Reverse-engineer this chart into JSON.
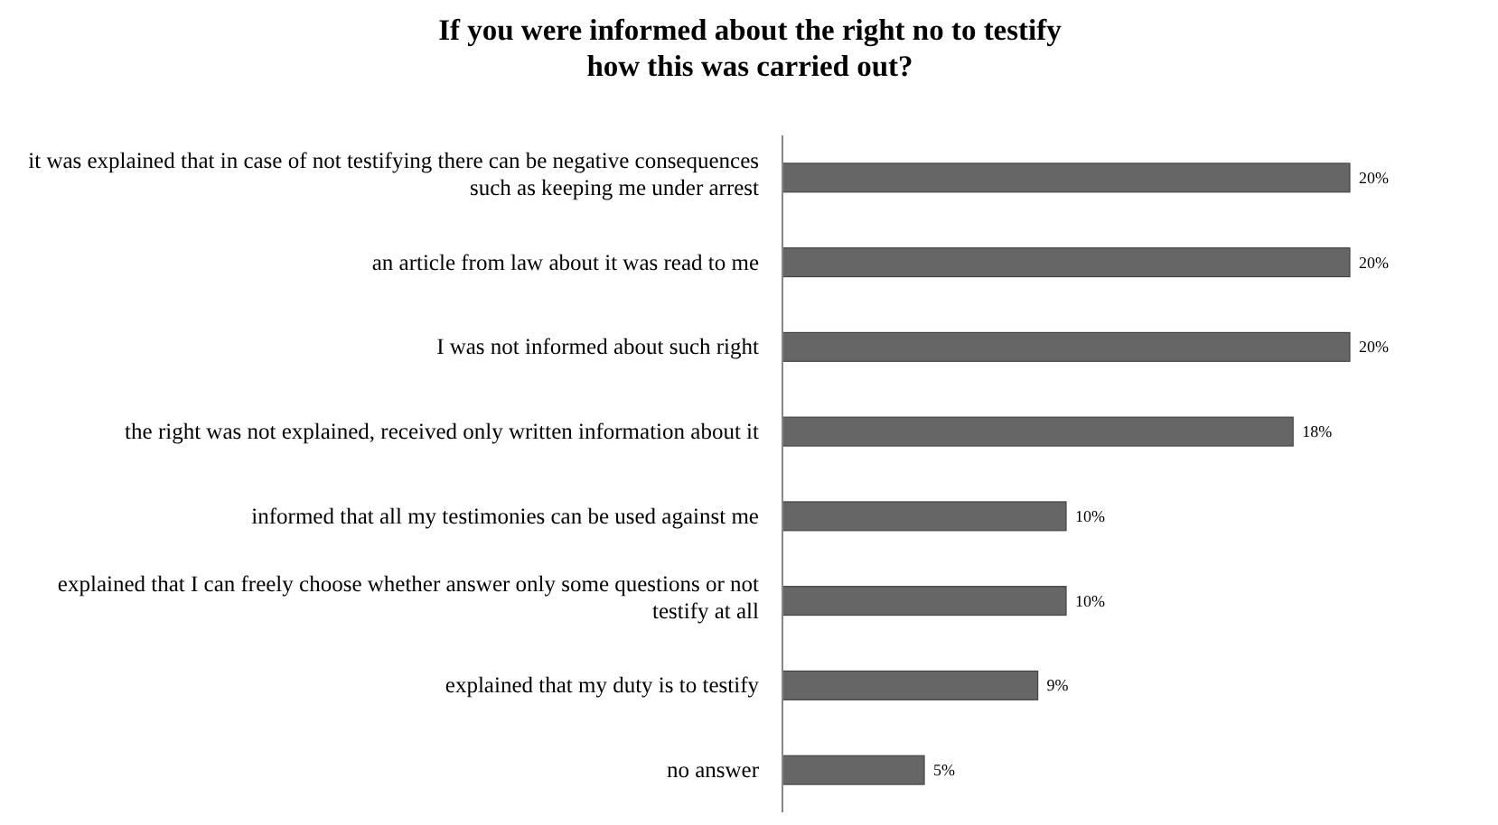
{
  "chart_data": {
    "type": "bar",
    "orientation": "horizontal",
    "title": "If you were informed about the right no to testify\nhow this was carried out?",
    "categories": [
      "it was explained that in case of not testifying there can be negative consequences such as keeping me under arrest",
      "an article from law about it was read to me",
      "I was not informed about such right",
      "the right was not explained, received only written information about it",
      "informed that all my testimonies can be used against me",
      "explained that I can freely choose whether answer only some questions or not testify at all",
      "explained that my duty is to testify",
      "no answer"
    ],
    "values": [
      20,
      20,
      20,
      18,
      10,
      10,
      9,
      5
    ],
    "value_labels": [
      "20%",
      "20%",
      "20%",
      "18%",
      "10%",
      "10%",
      "9%",
      "5%"
    ],
    "color": "#666666"
  }
}
